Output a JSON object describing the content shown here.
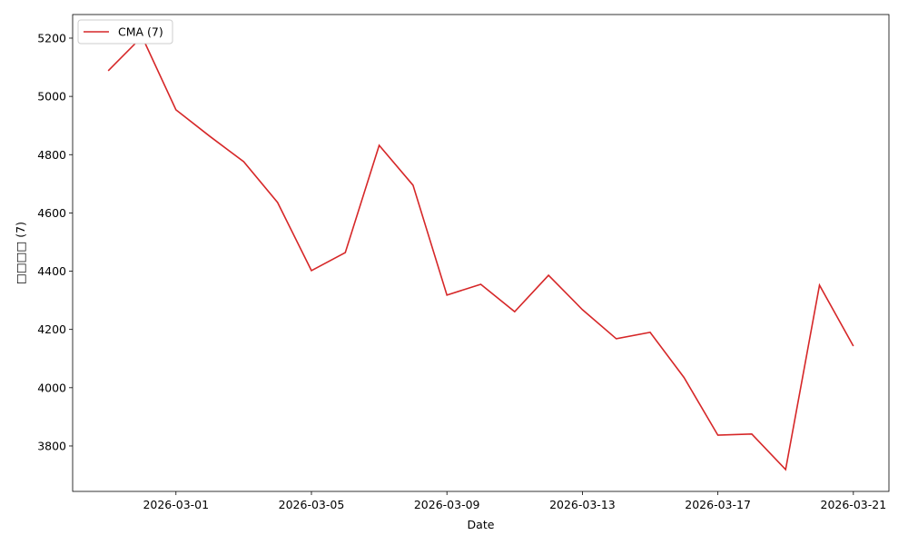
{
  "chart_data": {
    "type": "line",
    "x": [
      "2026-02-27",
      "2026-02-28",
      "2026-03-01",
      "2026-03-02",
      "2026-03-03",
      "2026-03-04",
      "2026-03-05",
      "2026-03-06",
      "2026-03-07",
      "2026-03-08",
      "2026-03-09",
      "2026-03-10",
      "2026-03-11",
      "2026-03-12",
      "2026-03-13",
      "2026-03-14",
      "2026-03-15",
      "2026-03-16",
      "2026-03-17",
      "2026-03-18",
      "2026-03-19",
      "2026-03-20",
      "2026-03-21"
    ],
    "series": [
      {
        "name": "CMA (7)",
        "color": "#d62728",
        "values": [
          5088,
          5205,
          4954,
          4863,
          4776,
          4636,
          4402,
          4464,
          4832,
          4695,
          4318,
          4355,
          4261,
          4386,
          4268,
          4168,
          4190,
          4035,
          3837,
          3841,
          3719,
          4352,
          4143
        ]
      }
    ],
    "xlabel": "Date",
    "ylabel": "□□□□ (7)",
    "xlim": [
      "2026-02-25T22:48",
      "2026-03-22T01:12"
    ],
    "xticks": [
      "2026-03-01",
      "2026-03-05",
      "2026-03-09",
      "2026-03-13",
      "2026-03-17",
      "2026-03-21"
    ],
    "ylim": [
      3644,
      5281
    ],
    "yticks": [
      3800,
      4000,
      4200,
      4400,
      4600,
      4800,
      5000,
      5200
    ],
    "grid": false,
    "legend": "upper left"
  }
}
